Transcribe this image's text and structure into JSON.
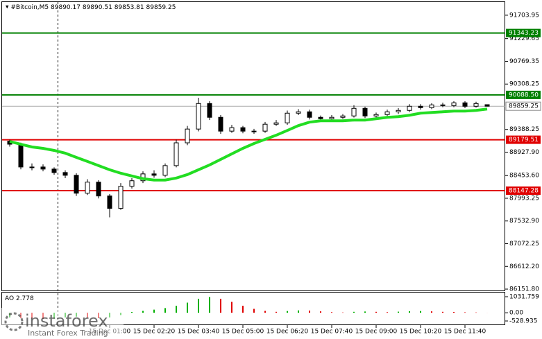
{
  "chart_data": [
    {
      "type": "candlestick",
      "title": "#Bitcoin,M5",
      "categories": [
        null,
        null,
        null,
        null,
        null,
        null,
        null,
        null,
        null,
        "15 Dec 01:00",
        null,
        null,
        null,
        "15 Dec 02:20",
        null,
        null,
        null,
        "15 Dec 03:40",
        null,
        null,
        null,
        "15 Dec 05:00",
        null,
        null,
        null,
        "15 Dec 06:20",
        null,
        null,
        null,
        "15 Dec 07:40",
        null,
        null,
        null,
        "15 Dec 09:00",
        null,
        null,
        null,
        "15 Dec 10:20",
        null,
        null,
        null,
        "15 Dec 11:40",
        null,
        null
      ],
      "open": [
        89150,
        89089,
        88627,
        88627,
        88585,
        88515,
        88459,
        88096,
        88320,
        88040,
        87788,
        88236,
        88348,
        88487,
        88459,
        88655,
        89117,
        89396,
        89914,
        89634,
        89354,
        89424,
        89354,
        89354,
        89494,
        89522,
        89718,
        89746,
        89634,
        89606,
        89634,
        89662,
        89816,
        89662,
        89690,
        89746,
        89774,
        89858,
        89830,
        89886,
        89872,
        89928,
        89858,
        89890.17
      ],
      "high": [
        89180,
        89120,
        88700,
        88680,
        88620,
        88560,
        88500,
        88380,
        88360,
        88080,
        88300,
        88400,
        88540,
        88560,
        88700,
        89180,
        89460,
        90030,
        89960,
        89680,
        89480,
        89460,
        89400,
        89540,
        89580,
        89770,
        89800,
        89790,
        89670,
        89680,
        89700,
        89880,
        89850,
        89730,
        89790,
        89820,
        89900,
        89900,
        89920,
        89930,
        89960,
        89960,
        89950,
        89890.51
      ],
      "low": [
        89040,
        88580,
        88560,
        88540,
        88470,
        88400,
        88040,
        88060,
        87990,
        87606,
        87760,
        88190,
        88300,
        88410,
        88420,
        88620,
        89070,
        89350,
        89580,
        89300,
        89320,
        89310,
        89300,
        89320,
        89460,
        89480,
        89680,
        89590,
        89560,
        89570,
        89600,
        89630,
        89620,
        89630,
        89660,
        89700,
        89740,
        89790,
        89800,
        89840,
        89840,
        89820,
        89830,
        89853.81
      ],
      "close": [
        89089,
        88627,
        88627,
        88585,
        88515,
        88459,
        88096,
        88320,
        88040,
        87788,
        88236,
        88348,
        88487,
        88459,
        88655,
        89117,
        89396,
        89914,
        89634,
        89354,
        89424,
        89354,
        89354,
        89494,
        89522,
        89718,
        89746,
        89634,
        89606,
        89634,
        89662,
        89816,
        89662,
        89690,
        89746,
        89774,
        89858,
        89830,
        89886,
        89872,
        89928,
        89858,
        89914,
        89859.25
      ],
      "ma": {
        "color": "#22dd22",
        "values": [
          89145,
          89089,
          89033,
          89005,
          88963,
          88907,
          88823,
          88739,
          88655,
          88571,
          88501,
          88445,
          88390,
          88362,
          88362,
          88403,
          88473,
          88571,
          88669,
          88781,
          88893,
          89005,
          89103,
          89187,
          89271,
          89368,
          89466,
          89536,
          89564,
          89564,
          89564,
          89578,
          89578,
          89606,
          89634,
          89648,
          89676,
          89718,
          89732,
          89746,
          89760,
          89760,
          89774,
          89802
        ]
      },
      "levels": [
        {
          "value": 91343.23,
          "color": "#008000"
        },
        {
          "value": 90088.5,
          "label": "90088.50",
          "color": "#008000"
        },
        {
          "value": 89179.51,
          "color": "#e00000"
        },
        {
          "value": 88147.28,
          "color": "#e00000"
        }
      ],
      "ylim": [
        86110,
        91984
      ],
      "yticks": [
        91703.95,
        91229.65,
        90769.35,
        90308.25,
        89388.25,
        {
          "value": 88927.9,
          "label": "88927.90"
        },
        {
          "value": 88453.6,
          "label": "88453.60"
        },
        87993.25,
        {
          "value": 87532.9,
          "label": "87532.90"
        },
        87072.25,
        {
          "value": 86612.2,
          "label": "86612.20"
        },
        {
          "value": 86151.8,
          "label": "86151.80"
        }
      ]
    },
    {
      "type": "bar",
      "title": "AO",
      "values": [
        -300,
        -350,
        -380,
        -400,
        -380,
        -300,
        -250,
        -300,
        -350,
        -300,
        -150,
        50,
        120,
        200,
        300,
        450,
        650,
        900,
        1010,
        900,
        700,
        450,
        250,
        120,
        60,
        110,
        150,
        140,
        90,
        40,
        20,
        60,
        80,
        60,
        40,
        70,
        100,
        110,
        90,
        60,
        50,
        30,
        20,
        2.778
      ],
      "up_color": "#00b000",
      "down_color": "#e00000",
      "ylim": [
        -841,
        1388
      ],
      "yticks": [
        1031.759,
        {
          "value": 0,
          "label": "0.00"
        },
        -528.935
      ]
    }
  ],
  "watermark": {
    "brand": "instaforex",
    "slogan": "Instant Forex Trading"
  }
}
